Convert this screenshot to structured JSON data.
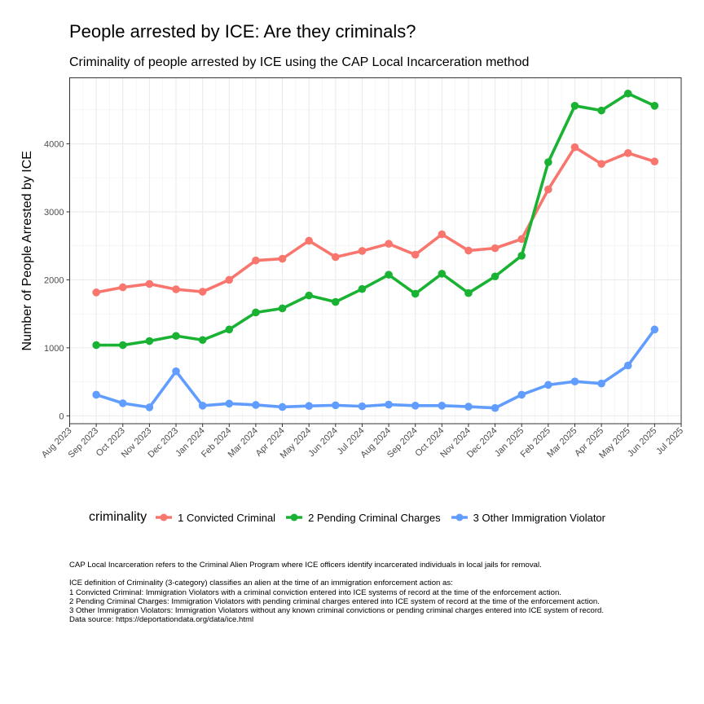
{
  "title": "People arrested by ICE: Are they criminals?",
  "subtitle": "Criminality of people arrested by ICE using the CAP Local Incarceration method",
  "notes": [
    "CAP Local Incarceration refers to the Criminal Alien Program where ICE officers identify incarcerated individuals in local jails for removal.",
    "",
    "ICE definition of Criminality (3-category) classifies an alien at the time of an immigration enforcement action as:",
    "1 Convicted Criminal: Immigration Violators with a criminal conviction entered into ICE systems of record at the time of the enforcement action.",
    "2 Pending Criminal Charges: Immigration Violators with pending criminal charges entered into ICE system of record at the time of the enforcement action.",
    "3 Other Immigration Violators: Immigration Violators without any known criminal convictions or pending criminal charges entered into ICE system of record.",
    "Data source: https://deportationdata.org/data/ice.html"
  ],
  "chart_data": {
    "type": "line",
    "title": "People arrested by ICE: Are they criminals?",
    "subtitle": "Criminality of people arrested by ICE using the CAP Local Incarceration method",
    "xlabel": "",
    "ylabel": "Number of People Arrested by ICE",
    "x_ticks": [
      "Aug 2023",
      "Sep 2023",
      "Oct 2023",
      "Nov 2023",
      "Dec 2023",
      "Jan 2024",
      "Feb 2024",
      "Mar 2024",
      "Apr 2024",
      "May 2024",
      "Jun 2024",
      "Jul 2024",
      "Aug 2024",
      "Sep 2024",
      "Oct 2024",
      "Nov 2024",
      "Dec 2024",
      "Jan 2025",
      "Feb 2025",
      "Mar 2025",
      "Apr 2025",
      "May 2025",
      "Jun 2025",
      "Jul 2025"
    ],
    "y_ticks": [
      0,
      1000,
      2000,
      3000,
      4000
    ],
    "ylim": [
      -116,
      4971
    ],
    "grid": true,
    "legend_title": "criminality",
    "legend_position": "bottom",
    "x": [
      "Sep 2023",
      "Oct 2023",
      "Nov 2023",
      "Dec 2023",
      "Jan 2024",
      "Feb 2024",
      "Mar 2024",
      "Apr 2024",
      "May 2024",
      "Jun 2024",
      "Jul 2024",
      "Aug 2024",
      "Sep 2024",
      "Oct 2024",
      "Nov 2024",
      "Dec 2024",
      "Jan 2025",
      "Feb 2025",
      "Mar 2025",
      "Apr 2025",
      "May 2025",
      "Jun 2025"
    ],
    "series": [
      {
        "name": "1 Convicted Criminal",
        "color": "#F8766D",
        "values": [
          1815,
          1890,
          1940,
          1860,
          1825,
          2000,
          2285,
          2310,
          2575,
          2335,
          2425,
          2530,
          2370,
          2670,
          2430,
          2465,
          2600,
          3330,
          3950,
          3705,
          3865,
          3740
        ]
      },
      {
        "name": "2 Pending Criminal Charges",
        "color": "#19B232",
        "values": [
          1040,
          1040,
          1100,
          1175,
          1115,
          1270,
          1520,
          1580,
          1770,
          1675,
          1865,
          2075,
          1795,
          2090,
          1805,
          2050,
          2355,
          3730,
          4560,
          4490,
          4740,
          4560
        ]
      },
      {
        "name": "3 Other Immigration Violator",
        "color": "#619CFF",
        "values": [
          310,
          185,
          125,
          655,
          150,
          180,
          160,
          130,
          145,
          155,
          140,
          165,
          150,
          150,
          135,
          115,
          310,
          455,
          505,
          475,
          740,
          1270
        ]
      }
    ]
  }
}
